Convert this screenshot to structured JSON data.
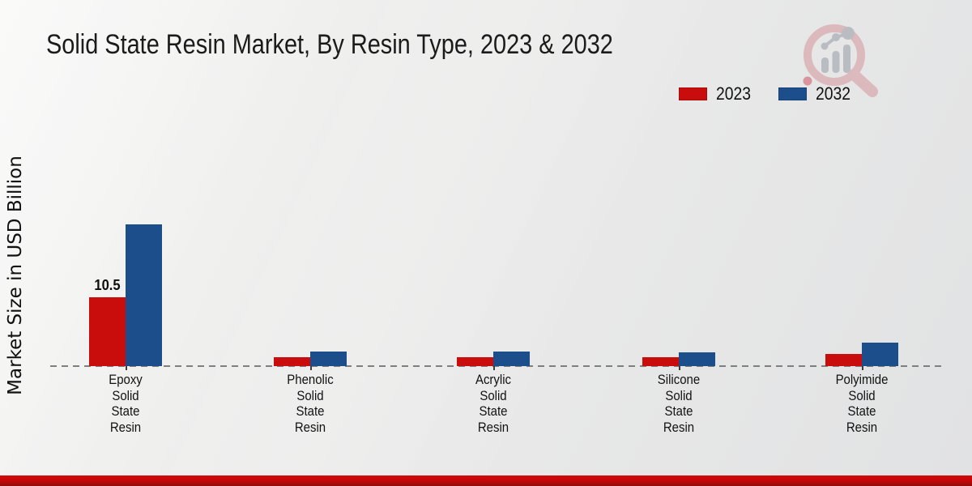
{
  "header": {
    "title": "Solid State Resin Market, By Resin Type, 2023 & 2032"
  },
  "y_axis": {
    "label": "Market Size in USD Billion"
  },
  "legend": {
    "items": [
      {
        "label": "2023",
        "color": "#c90d0d"
      },
      {
        "label": "2032",
        "color": "#1b4e8a"
      }
    ]
  },
  "branding": {
    "logo_name": "magnifier-bar-chart-logo",
    "ring_color": "#dcb6ba",
    "inner_color": "#b6bac0"
  },
  "footer": {
    "accent_color": "#c20606"
  },
  "chart_data": {
    "type": "bar",
    "title": "Solid State Resin Market, By Resin Type, 2023 & 2032",
    "ylabel": "Market Size in USD Billion",
    "xlabel": "",
    "grid": false,
    "legend_position": "top-right",
    "x_baseline_style": "dashed",
    "y_axis_visible": false,
    "categories": [
      "Epoxy Solid State Resin",
      "Phenolic Solid State Resin",
      "Acrylic Solid State Resin",
      "Silicone Solid State Resin",
      "Polyimide Solid State Resin"
    ],
    "category_lines": [
      [
        "Epoxy",
        "Solid",
        "State",
        "Resin"
      ],
      [
        "Phenolic",
        "Solid",
        "State",
        "Resin"
      ],
      [
        "Acrylic",
        "Solid",
        "State",
        "Resin"
      ],
      [
        "Silicone",
        "Solid",
        "State",
        "Resin"
      ],
      [
        "Polyimide",
        "Solid",
        "State",
        "Resin"
      ]
    ],
    "series": [
      {
        "name": "2023",
        "color": "#c90d0d",
        "values": [
          10.5,
          1.4,
          1.3,
          1.3,
          1.9
        ]
      },
      {
        "name": "2032",
        "color": "#1b4e8a",
        "values": [
          21.6,
          2.2,
          2.2,
          2.1,
          3.6
        ]
      }
    ],
    "data_labels": [
      {
        "series": "2023",
        "category_index": 0,
        "text": "10.5"
      }
    ],
    "ylim": [
      0,
      24
    ],
    "unit": "USD Billion"
  }
}
